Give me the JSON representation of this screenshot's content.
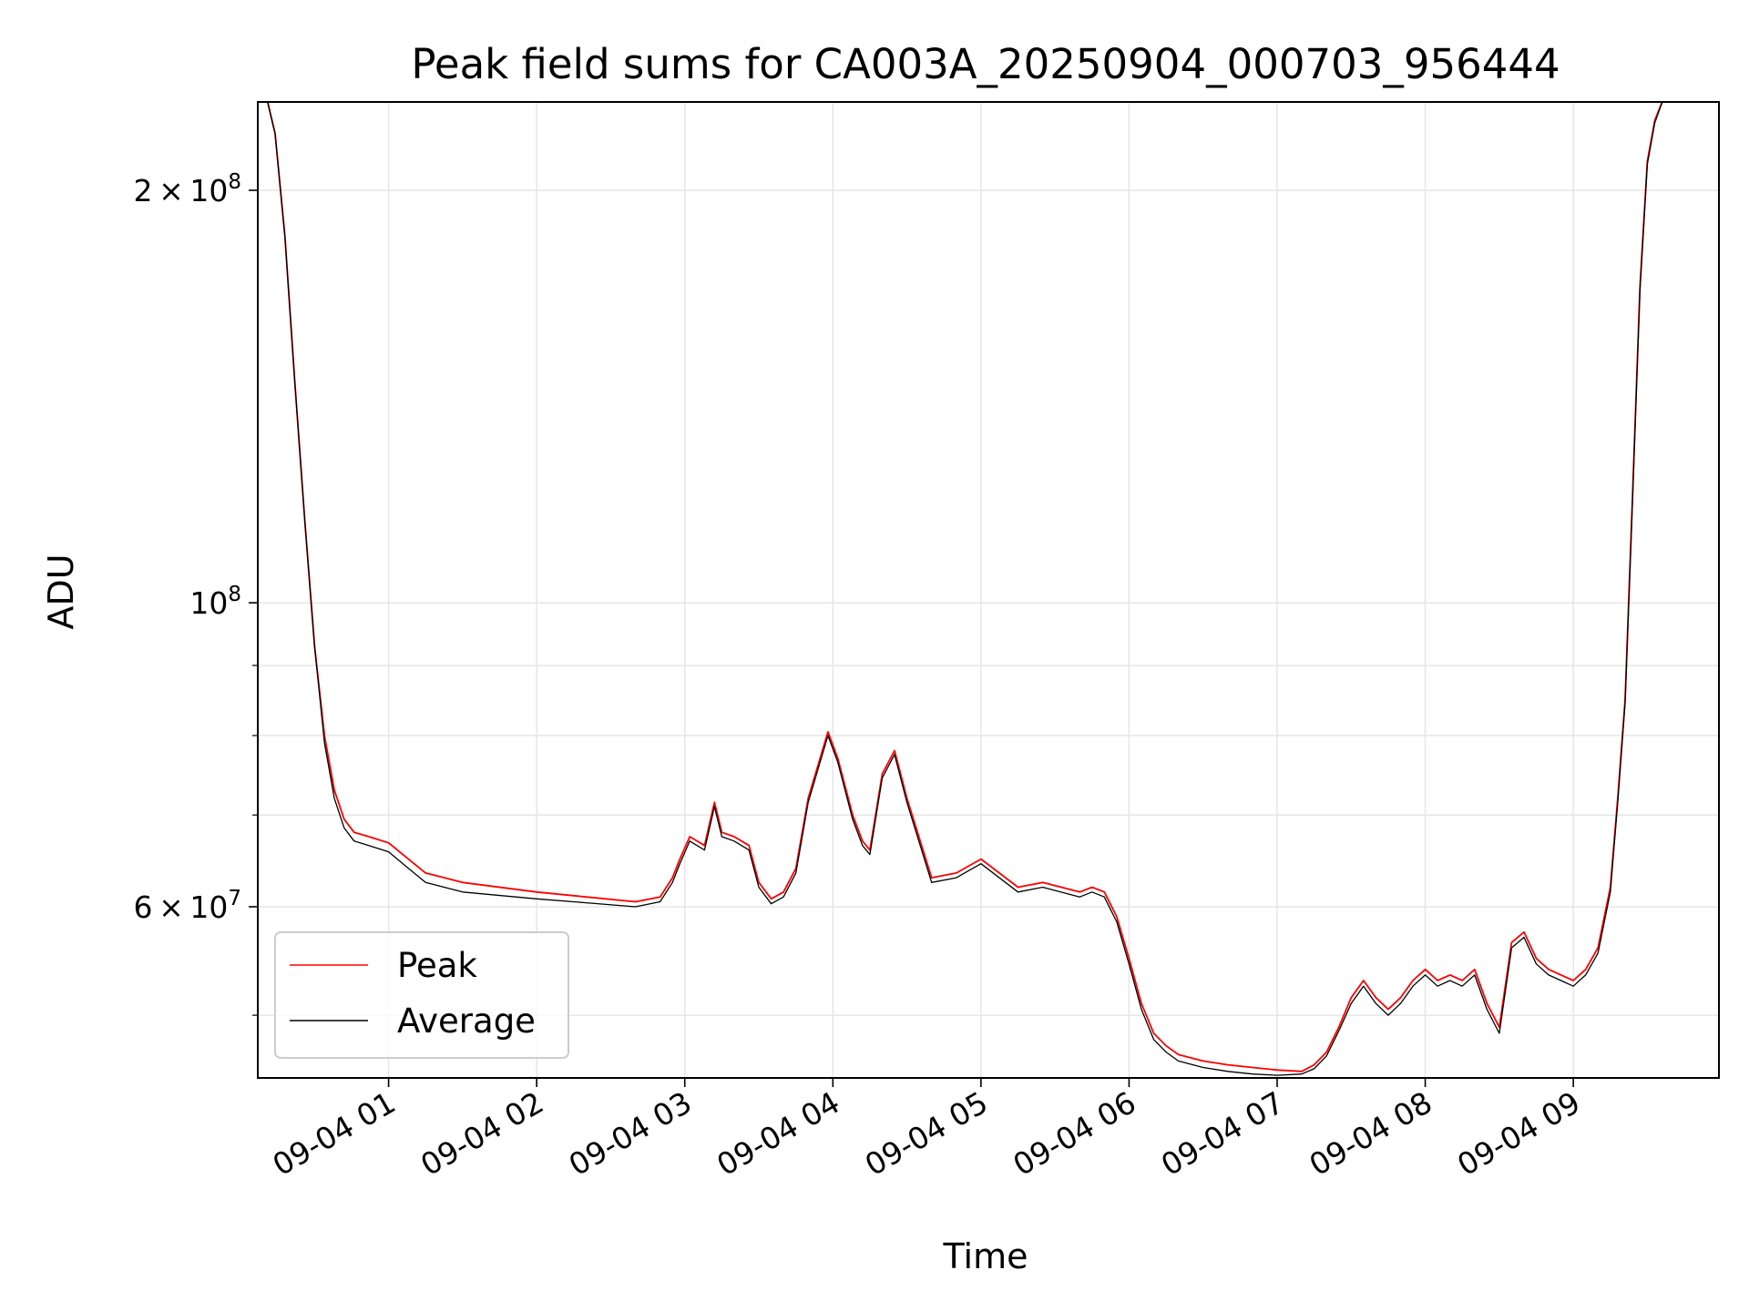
{
  "chart_data": {
    "type": "line",
    "title": "Peak field sums for CA003A_20250904_000703_956444",
    "xlabel": "Time",
    "ylabel": "ADU",
    "yscale": "log",
    "ylim": [
      45000000,
      232000000
    ],
    "xlim": [
      "2025-09-04 00:07",
      "2025-09-04 09:59"
    ],
    "grid": true,
    "legend_position": "lower-left",
    "x_ticks": [
      "09-04 01",
      "09-04 02",
      "09-04 03",
      "09-04 04",
      "09-04 05",
      "09-04 06",
      "09-04 07",
      "09-04 08",
      "09-04 09"
    ],
    "y_ticks_major": [
      {
        "value": 200000000,
        "mantissa": "2",
        "exponent": "8"
      },
      {
        "value": 100000000,
        "mantissa": "",
        "exponent": "8"
      },
      {
        "value": 60000000,
        "mantissa": "6",
        "exponent": "7"
      }
    ],
    "y_ticks_minor": [
      50000000,
      70000000,
      80000000,
      90000000
    ],
    "series": [
      {
        "name": "Peak",
        "color": "#ff0000",
        "x": [
          "2025-09-04 00:07",
          "2025-09-04 00:11",
          "2025-09-04 00:14",
          "2025-09-04 00:18",
          "2025-09-04 00:22",
          "2025-09-04 00:26",
          "2025-09-04 00:30",
          "2025-09-04 00:34",
          "2025-09-04 00:38",
          "2025-09-04 00:42",
          "2025-09-04 00:46",
          "2025-09-04 00:52",
          "2025-09-04 01:00",
          "2025-09-04 01:08",
          "2025-09-04 01:15",
          "2025-09-04 01:30",
          "2025-09-04 02:00",
          "2025-09-04 02:20",
          "2025-09-04 02:40",
          "2025-09-04 02:50",
          "2025-09-04 02:55",
          "2025-09-04 02:58",
          "2025-09-04 03:02",
          "2025-09-04 03:08",
          "2025-09-04 03:12",
          "2025-09-04 03:15",
          "2025-09-04 03:20",
          "2025-09-04 03:26",
          "2025-09-04 03:30",
          "2025-09-04 03:35",
          "2025-09-04 03:40",
          "2025-09-04 03:45",
          "2025-09-04 03:50",
          "2025-09-04 03:58",
          "2025-09-04 04:02",
          "2025-09-04 04:08",
          "2025-09-04 04:12",
          "2025-09-04 04:15",
          "2025-09-04 04:20",
          "2025-09-04 04:25",
          "2025-09-04 04:30",
          "2025-09-04 04:40",
          "2025-09-04 04:50",
          "2025-09-04 05:00",
          "2025-09-04 05:15",
          "2025-09-04 05:25",
          "2025-09-04 05:40",
          "2025-09-04 05:45",
          "2025-09-04 05:50",
          "2025-09-04 05:55",
          "2025-09-04 06:00",
          "2025-09-04 06:05",
          "2025-09-04 06:10",
          "2025-09-04 06:15",
          "2025-09-04 06:20",
          "2025-09-04 06:30",
          "2025-09-04 06:40",
          "2025-09-04 06:50",
          "2025-09-04 07:00",
          "2025-09-04 07:10",
          "2025-09-04 07:15",
          "2025-09-04 07:20",
          "2025-09-04 07:25",
          "2025-09-04 07:30",
          "2025-09-04 07:35",
          "2025-09-04 07:40",
          "2025-09-04 07:45",
          "2025-09-04 07:50",
          "2025-09-04 07:55",
          "2025-09-04 08:00",
          "2025-09-04 08:05",
          "2025-09-04 08:10",
          "2025-09-04 08:15",
          "2025-09-04 08:20",
          "2025-09-04 08:25",
          "2025-09-04 08:30",
          "2025-09-04 08:35",
          "2025-09-04 08:40",
          "2025-09-04 08:45",
          "2025-09-04 08:50",
          "2025-09-04 08:55",
          "2025-09-04 09:00",
          "2025-09-04 09:05",
          "2025-09-04 09:10",
          "2025-09-04 09:15",
          "2025-09-04 09:18",
          "2025-09-04 09:21",
          "2025-09-04 09:24",
          "2025-09-04 09:27",
          "2025-09-04 09:30",
          "2025-09-04 09:33",
          "2025-09-04 09:36",
          "2025-09-04 09:40",
          "2025-09-04 09:45",
          "2025-09-04 09:59"
        ],
        "values": [
          232000000,
          232000000,
          220000000,
          185000000,
          145000000,
          115000000,
          93000000,
          80000000,
          73000000,
          69500000,
          68000000,
          67500000,
          66800000,
          65000000,
          63500000,
          62500000,
          61500000,
          61000000,
          60500000,
          61000000,
          63000000,
          65000000,
          67500000,
          66500000,
          71500000,
          68000000,
          67500000,
          66500000,
          62500000,
          60800000,
          61500000,
          64000000,
          72000000,
          80500000,
          77000000,
          70000000,
          67000000,
          66000000,
          75000000,
          78000000,
          72000000,
          63000000,
          63500000,
          65000000,
          62000000,
          62500000,
          61500000,
          62000000,
          61500000,
          59000000,
          55000000,
          51000000,
          48500000,
          47500000,
          46800000,
          46300000,
          46000000,
          45800000,
          45600000,
          45500000,
          46000000,
          47000000,
          49000000,
          51500000,
          53000000,
          51500000,
          50500000,
          51500000,
          53000000,
          54000000,
          53000000,
          53500000,
          53000000,
          54000000,
          51000000,
          49000000,
          56500000,
          57500000,
          55000000,
          54000000,
          53500000,
          53000000,
          54000000,
          56000000,
          62000000,
          72000000,
          85000000,
          120000000,
          170000000,
          210000000,
          225000000,
          232000000,
          232000000,
          232000000,
          232000000
        ]
      },
      {
        "name": "Average",
        "color": "#000000",
        "x": [
          "2025-09-04 00:07",
          "2025-09-04 00:11",
          "2025-09-04 00:14",
          "2025-09-04 00:18",
          "2025-09-04 00:22",
          "2025-09-04 00:26",
          "2025-09-04 00:30",
          "2025-09-04 00:34",
          "2025-09-04 00:38",
          "2025-09-04 00:42",
          "2025-09-04 00:46",
          "2025-09-04 00:52",
          "2025-09-04 01:00",
          "2025-09-04 01:08",
          "2025-09-04 01:15",
          "2025-09-04 01:30",
          "2025-09-04 02:00",
          "2025-09-04 02:20",
          "2025-09-04 02:40",
          "2025-09-04 02:50",
          "2025-09-04 02:55",
          "2025-09-04 02:58",
          "2025-09-04 03:02",
          "2025-09-04 03:08",
          "2025-09-04 03:12",
          "2025-09-04 03:15",
          "2025-09-04 03:20",
          "2025-09-04 03:26",
          "2025-09-04 03:30",
          "2025-09-04 03:35",
          "2025-09-04 03:40",
          "2025-09-04 03:45",
          "2025-09-04 03:50",
          "2025-09-04 03:58",
          "2025-09-04 04:02",
          "2025-09-04 04:08",
          "2025-09-04 04:12",
          "2025-09-04 04:15",
          "2025-09-04 04:20",
          "2025-09-04 04:25",
          "2025-09-04 04:30",
          "2025-09-04 04:40",
          "2025-09-04 04:50",
          "2025-09-04 05:00",
          "2025-09-04 05:15",
          "2025-09-04 05:25",
          "2025-09-04 05:40",
          "2025-09-04 05:45",
          "2025-09-04 05:50",
          "2025-09-04 05:55",
          "2025-09-04 06:00",
          "2025-09-04 06:05",
          "2025-09-04 06:10",
          "2025-09-04 06:15",
          "2025-09-04 06:20",
          "2025-09-04 06:30",
          "2025-09-04 06:40",
          "2025-09-04 06:50",
          "2025-09-04 07:00",
          "2025-09-04 07:10",
          "2025-09-04 07:15",
          "2025-09-04 07:20",
          "2025-09-04 07:25",
          "2025-09-04 07:30",
          "2025-09-04 07:35",
          "2025-09-04 07:40",
          "2025-09-04 07:45",
          "2025-09-04 07:50",
          "2025-09-04 07:55",
          "2025-09-04 08:00",
          "2025-09-04 08:05",
          "2025-09-04 08:10",
          "2025-09-04 08:15",
          "2025-09-04 08:20",
          "2025-09-04 08:25",
          "2025-09-04 08:30",
          "2025-09-04 08:35",
          "2025-09-04 08:40",
          "2025-09-04 08:45",
          "2025-09-04 08:50",
          "2025-09-04 08:55",
          "2025-09-04 09:00",
          "2025-09-04 09:05",
          "2025-09-04 09:10",
          "2025-09-04 09:15",
          "2025-09-04 09:18",
          "2025-09-04 09:21",
          "2025-09-04 09:24",
          "2025-09-04 09:27",
          "2025-09-04 09:30",
          "2025-09-04 09:33",
          "2025-09-04 09:36",
          "2025-09-04 09:40",
          "2025-09-04 09:45",
          "2025-09-04 09:59"
        ],
        "values": [
          232000000,
          232000000,
          220000000,
          185000000,
          145000000,
          115000000,
          93000000,
          79000000,
          72000000,
          68500000,
          67000000,
          66500000,
          65800000,
          64000000,
          62500000,
          61500000,
          60800000,
          60400000,
          60000000,
          60500000,
          62500000,
          64500000,
          67000000,
          66000000,
          71000000,
          67500000,
          67000000,
          66000000,
          62000000,
          60300000,
          61000000,
          63500000,
          71500000,
          80000000,
          76500000,
          69500000,
          66500000,
          65500000,
          74500000,
          77500000,
          71500000,
          62500000,
          63000000,
          64500000,
          61500000,
          62000000,
          61000000,
          61500000,
          61000000,
          58500000,
          54500000,
          50500000,
          48000000,
          47000000,
          46300000,
          45800000,
          45500000,
          45300000,
          45200000,
          45300000,
          45700000,
          46700000,
          48700000,
          51000000,
          52500000,
          51000000,
          50000000,
          51000000,
          52500000,
          53500000,
          52500000,
          53000000,
          52500000,
          53500000,
          50500000,
          48500000,
          56000000,
          57000000,
          54500000,
          53500000,
          53000000,
          52500000,
          53500000,
          55500000,
          61500000,
          71500000,
          84500000,
          119000000,
          169000000,
          209000000,
          224000000,
          232000000,
          232000000,
          232000000,
          232000000
        ]
      }
    ]
  }
}
